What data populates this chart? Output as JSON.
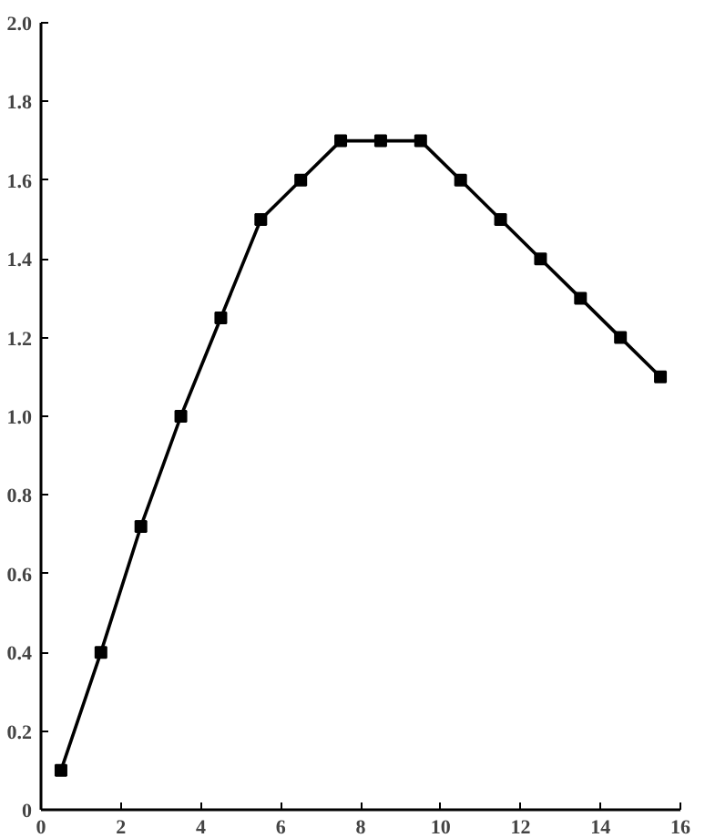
{
  "chart_data": {
    "type": "line",
    "x": [
      0.5,
      1.5,
      2.5,
      3.5,
      4.5,
      5.5,
      6.5,
      7.5,
      8.5,
      9.5,
      10.5,
      11.5,
      12.5,
      13.5,
      14.5,
      15.5
    ],
    "values": [
      0.1,
      0.4,
      0.72,
      1.0,
      1.25,
      1.5,
      1.6,
      1.7,
      1.7,
      1.7,
      1.6,
      1.5,
      1.4,
      1.3,
      1.2,
      1.1
    ],
    "color": "#000000",
    "marker": "square",
    "line_style": "solid",
    "grid": false,
    "xlim": [
      0,
      16
    ],
    "xticks": [
      0,
      2,
      4,
      6,
      8,
      10,
      12,
      14,
      16
    ],
    "ylim": [
      0,
      2.0
    ],
    "yticks": [
      0,
      {
        "value": 0.2,
        "label": "0.2"
      },
      {
        "value": 0.4,
        "label": "0.4"
      },
      {
        "value": 0.6,
        "label": "0.6"
      },
      {
        "value": 0.8,
        "label": "0.8"
      },
      {
        "value": 1.0,
        "label": "1.0"
      },
      {
        "value": 1.2,
        "label": "1.2"
      },
      {
        "value": 1.4,
        "label": "1.4"
      },
      {
        "value": 1.6,
        "label": "1.6"
      },
      {
        "value": 1.8,
        "label": "1.8"
      },
      {
        "value": 2.0,
        "label": "2.0"
      }
    ]
  }
}
